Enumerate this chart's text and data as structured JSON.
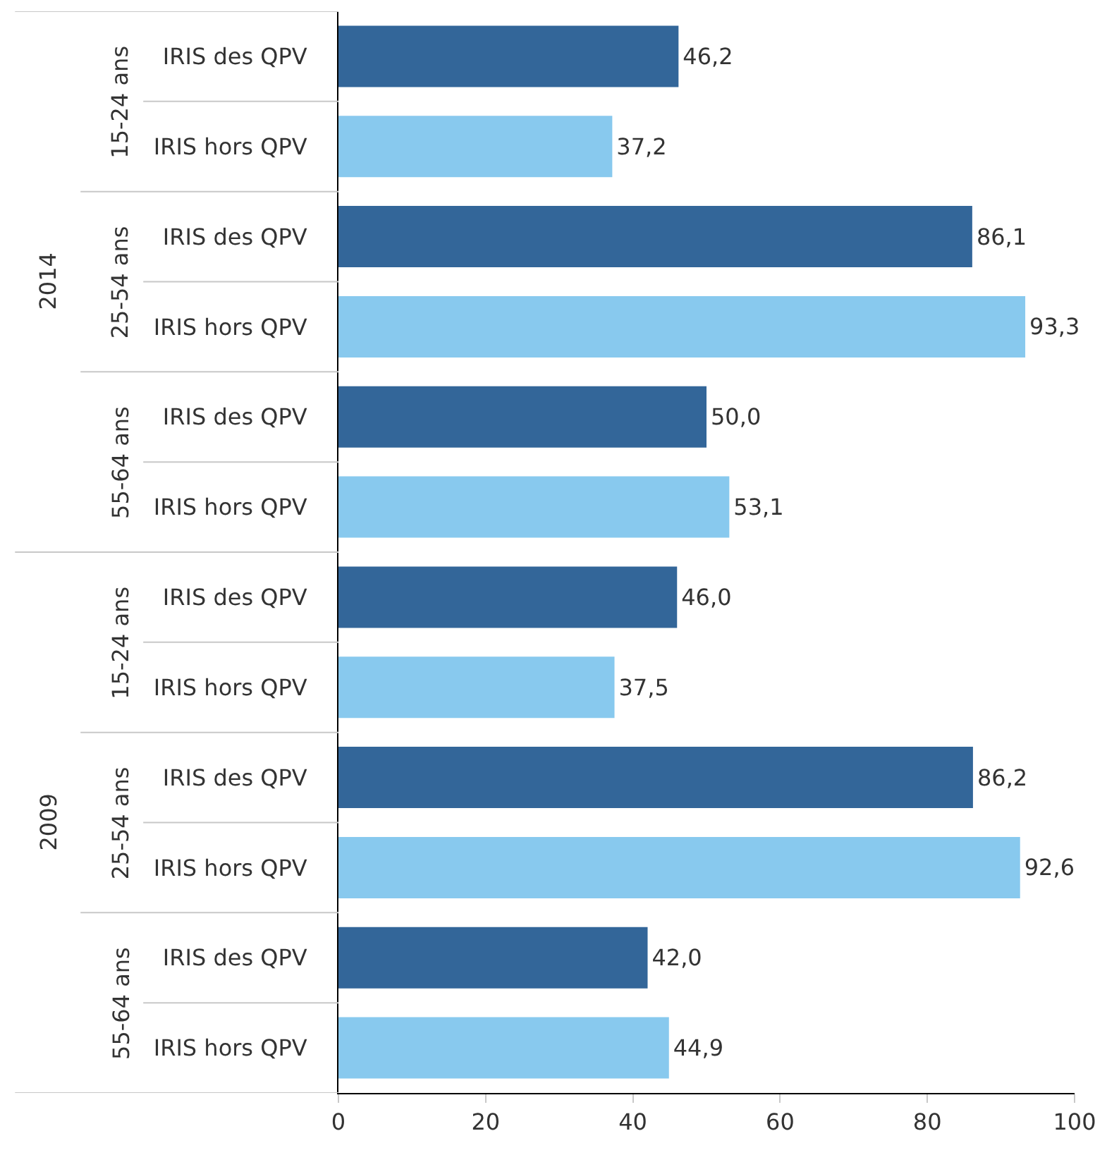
{
  "chart_data": {
    "type": "bar",
    "orientation": "horizontal",
    "categories": [
      "IRIS des QPV",
      "IRIS hors QPV",
      "IRIS des QPV",
      "IRIS hors QPV",
      "IRIS des QPV",
      "IRIS hors QPV",
      "IRIS des QPV",
      "IRIS hors QPV",
      "IRIS des QPV",
      "IRIS hors QPV",
      "IRIS des QPV",
      "IRIS hors QPV"
    ],
    "values": [
      46.2,
      37.2,
      86.1,
      93.3,
      50.0,
      53.1,
      46.0,
      37.5,
      86.2,
      92.6,
      42.0,
      44.9
    ],
    "value_labels": [
      "46,2",
      "37,2",
      "86,1",
      "93,3",
      "50,0",
      "53,1",
      "46,0",
      "37,5",
      "86,2",
      "92,6",
      "42,0",
      "44,9"
    ],
    "colors": [
      "#336699",
      "#88c9ee",
      "#336699",
      "#88c9ee",
      "#336699",
      "#88c9ee",
      "#336699",
      "#88c9ee",
      "#336699",
      "#88c9ee",
      "#336699",
      "#88c9ee"
    ],
    "annotations": [
      "15-24 ans",
      "25-54 ans",
      "55-64 ans",
      "15-24 ans",
      "25-54 ans",
      "55-64 ans",
      "2014",
      "2009"
    ],
    "xlim": [
      0,
      100
    ],
    "xticks": [
      0,
      20,
      40,
      60,
      80,
      100
    ]
  }
}
